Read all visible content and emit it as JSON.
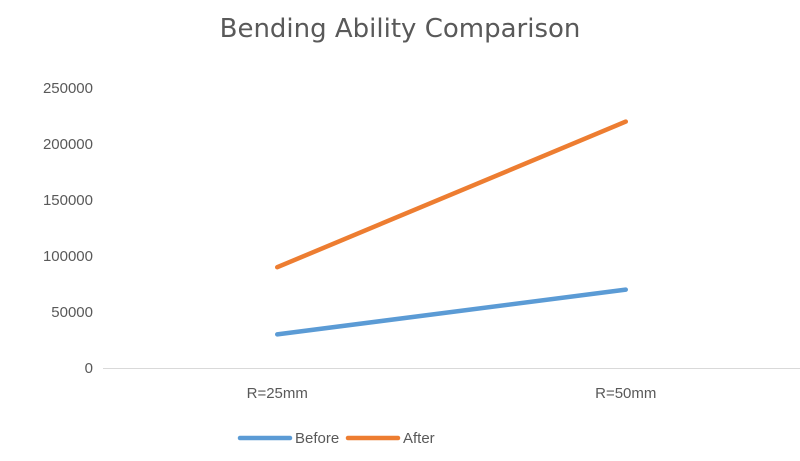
{
  "chart_data": {
    "type": "line",
    "title": "Bending Ability Comparison",
    "xlabel": "",
    "ylabel": "",
    "categories": [
      "R=25mm",
      "R=50mm"
    ],
    "ylim": [
      0,
      250000
    ],
    "yticks": [
      "0",
      "50000",
      "100000",
      "150000",
      "200000",
      "250000"
    ],
    "grid": false,
    "legend_position": "bottom",
    "series": [
      {
        "name": "Before",
        "values": [
          30000,
          70000
        ],
        "color": "#5b9bd5"
      },
      {
        "name": "After",
        "values": [
          90000,
          220000
        ],
        "color": "#ed7d31"
      }
    ]
  }
}
